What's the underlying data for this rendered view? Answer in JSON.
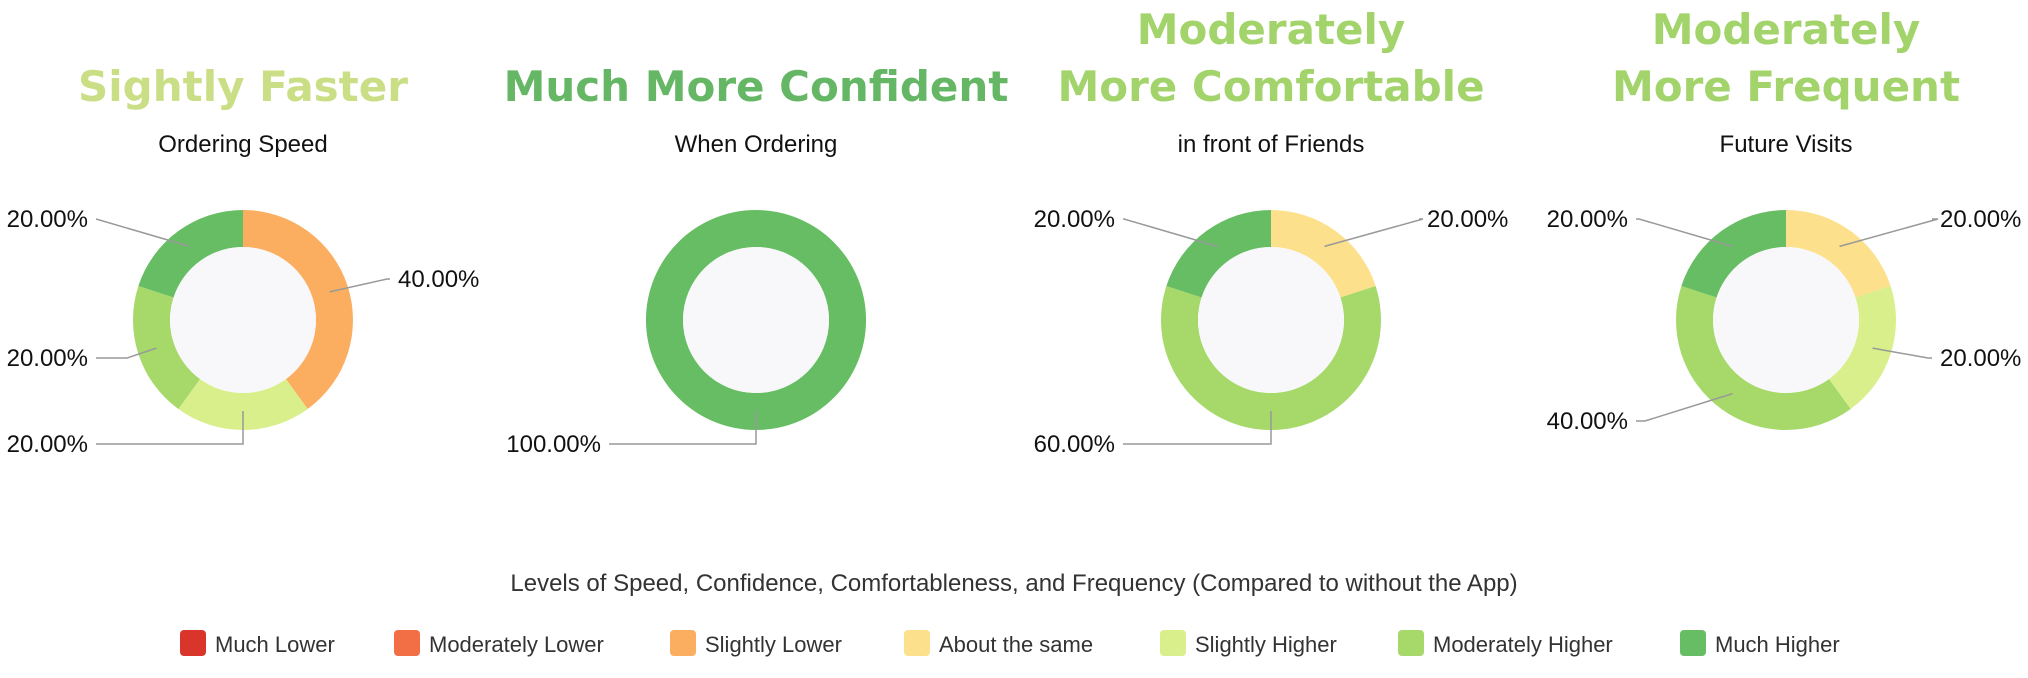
{
  "colors": {
    "headline_light": "#c9de85",
    "headline_mid": "#a3d46b",
    "headline_dark": "#66b765",
    "leader": "#999999",
    "hole": "#f8f8fa",
    "text": "#111111"
  },
  "panels": [
    {
      "headline": [
        "Sightly Faster"
      ],
      "headline_color": "#c9de85",
      "subtitle": "Ordering Speed"
    },
    {
      "headline": [
        "Much More Confident"
      ],
      "headline_color": "#66b765",
      "subtitle": "When Ordering"
    },
    {
      "headline": [
        "Moderately",
        "More Comfortable"
      ],
      "headline_color": "#a3d46b",
      "subtitle": "in front of Friends"
    },
    {
      "headline": [
        "Moderately",
        "More Frequent"
      ],
      "headline_color": "#a3d46b",
      "subtitle": "Future Visits"
    }
  ],
  "legend": {
    "title": "Levels of Speed, Confidence, Comfortableness, and Frequency (Compared to without the App)",
    "items": [
      {
        "label": "Much Lower",
        "color": "#d9352b"
      },
      {
        "label": "Moderately Lower",
        "color": "#f26e45"
      },
      {
        "label": "Slightly Lower",
        "color": "#fbae60"
      },
      {
        "label": "About the same",
        "color": "#fde08b"
      },
      {
        "label": "Slightly Higher",
        "color": "#d9ef8b"
      },
      {
        "label": "Moderately Higher",
        "color": "#a6d96a"
      },
      {
        "label": "Much Higher",
        "color": "#66bd63"
      }
    ]
  },
  "chart_data": [
    {
      "type": "pie",
      "variant": "donut",
      "title": "Sightly Faster",
      "subtitle": "Ordering Speed",
      "categories": [
        "Slightly Lower",
        "Slightly Higher",
        "Moderately Higher",
        "Much Higher"
      ],
      "values": [
        40,
        20,
        20,
        20
      ],
      "labels": [
        "40.00%",
        "20.00%",
        "20.00%",
        "20.00%"
      ],
      "colors": [
        "#fbae60",
        "#d9ef8b",
        "#a6d96a",
        "#66bd63"
      ]
    },
    {
      "type": "pie",
      "variant": "donut",
      "title": "Much More Confident",
      "subtitle": "When Ordering",
      "categories": [
        "Much Higher"
      ],
      "values": [
        100
      ],
      "labels": [
        "100.00%"
      ],
      "colors": [
        "#66bd63"
      ]
    },
    {
      "type": "pie",
      "variant": "donut",
      "title": "Moderately More Comfortable",
      "subtitle": "in front of Friends",
      "categories": [
        "About the same",
        "Moderately Higher",
        "Much Higher"
      ],
      "values": [
        20,
        60,
        20
      ],
      "labels": [
        "20.00%",
        "60.00%",
        "20.00%"
      ],
      "colors": [
        "#fde08b",
        "#a6d96a",
        "#66bd63"
      ]
    },
    {
      "type": "pie",
      "variant": "donut",
      "title": "Moderately More Frequent",
      "subtitle": "Future Visits",
      "categories": [
        "About the same",
        "Slightly Higher",
        "Moderately Higher",
        "Much Higher"
      ],
      "values": [
        20,
        20,
        40,
        20
      ],
      "labels": [
        "20.00%",
        "20.00%",
        "40.00%",
        "20.00%"
      ],
      "colors": [
        "#fde08b",
        "#d9ef8b",
        "#a6d96a",
        "#66bd63"
      ]
    }
  ]
}
